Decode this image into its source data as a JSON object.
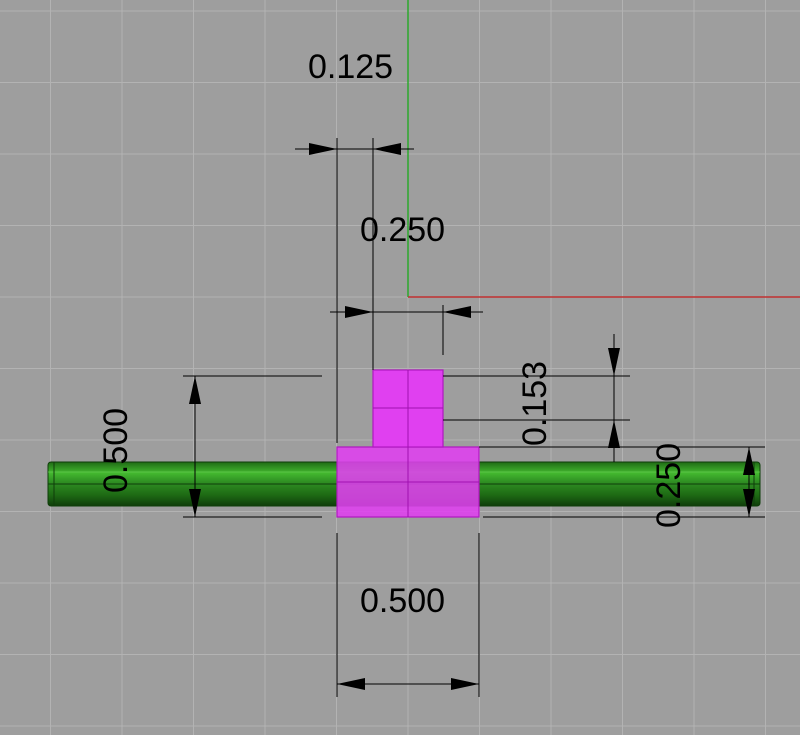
{
  "viewport": {
    "background_color": "#9e9e9e",
    "grid_color": "#b3b3b3",
    "x_axis_color": "#c03030",
    "y_axis_color": "#2da82d"
  },
  "objects": {
    "shaft": {
      "color": "#2f8f23"
    },
    "hub": {
      "color": "#e040f0"
    }
  },
  "dimensions": {
    "top_offset": "0.125",
    "boss_width": "0.250",
    "boss_height": "0.153",
    "hub_height": "0.250",
    "hub_width": "0.500",
    "overall_height": "0.500"
  }
}
